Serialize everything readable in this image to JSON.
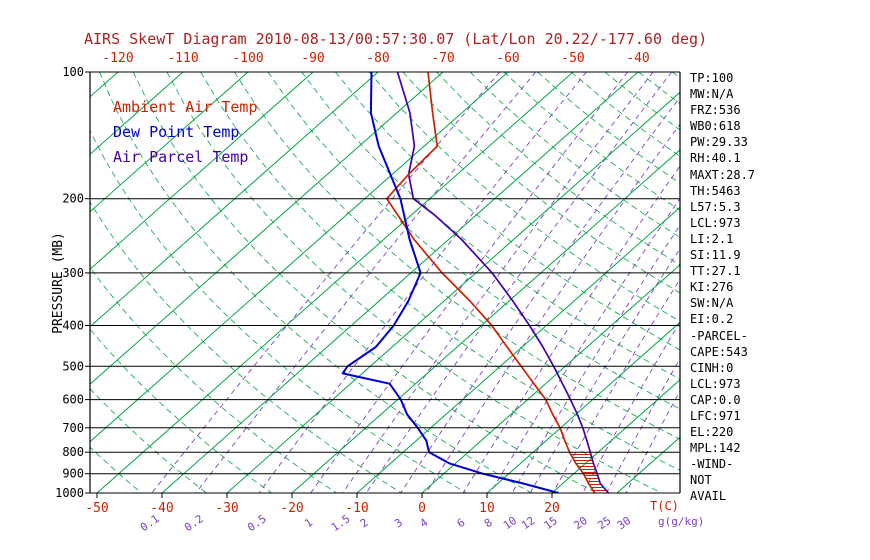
{
  "title": "AIRS SkewT Diagram 2010-08-13/00:57:30.07 (Lat/Lon 20.22/-177.60 deg)",
  "colors": {
    "title": "#aa2222",
    "red": "#cc2200",
    "green": "#00a544",
    "blue": "#0000cc",
    "violet": "#7d3fc4",
    "parcel": "#4400aa",
    "black": "#000000"
  },
  "legend": [
    {
      "label": "Ambient Air Temp",
      "color": "#cc2200"
    },
    {
      "label": "Dew Point Temp",
      "color": "#0000cc"
    },
    {
      "label": "Air Parcel Temp",
      "color": "#4400aa"
    }
  ],
  "stats_panel": {
    "lines": [
      "TP:100",
      "MW:N/A",
      "FRZ:536",
      "WB0:618",
      "PW:29.33",
      "RH:40.1",
      "MAXT:28.7",
      "TH:5463",
      "L57:5.3",
      "LCL:973",
      "LI:2.1",
      "SI:11.9",
      "TT:27.1",
      "KI:276",
      "SW:N/A",
      "EI:0.2",
      "-PARCEL-",
      "CAPE:543",
      "CINH:0",
      "LCL:973",
      "CAP:0.0",
      "LFC:971",
      "EL:220",
      "MPL:142",
      "-WIND-",
      "NOT",
      "AVAIL"
    ]
  },
  "axes": {
    "pressure_label": "PRESSURE (MB)",
    "pressure_ticks": [
      100,
      200,
      300,
      400,
      500,
      600,
      700,
      800,
      900,
      1000
    ],
    "top_temp_ticks": [
      -120,
      -110,
      -100,
      -90,
      -80,
      -70,
      -60,
      -50,
      -40
    ],
    "bottom_temp_ticks": [
      -50,
      -40,
      -30,
      -20,
      -10,
      0,
      10,
      20
    ],
    "mixing_ratios": [
      0.1,
      0.2,
      0.5,
      1,
      1.5,
      2,
      3,
      4,
      6,
      8,
      10,
      12,
      15,
      20,
      25,
      30
    ],
    "temp_unit": "T(C)",
    "mixing_unit": "g(g/kg)"
  },
  "chart_data": {
    "type": "line",
    "subtype": "skew-t-log-p",
    "title": "AIRS SkewT Diagram 2010-08-13/00:57:30.07 (Lat/Lon 20.22/-177.60 deg)",
    "ylabel": "PRESSURE (MB)",
    "xlabel": "T(C)",
    "pressure_scale": "log",
    "pressure_range": [
      100,
      1000
    ],
    "temp_range_bottom_axis": [
      -50,
      20
    ],
    "temp_range_top_axis": [
      -120,
      -40
    ],
    "isotherms": {
      "min": -160,
      "max": 40,
      "step": 10
    },
    "dry_adiabats_K": {
      "min": 230,
      "max": 460,
      "step": 10
    },
    "mixing_ratio_lines_g_kg": [
      0.1,
      0.2,
      0.5,
      1,
      1.5,
      2,
      3,
      4,
      6,
      8,
      10,
      12,
      15,
      20,
      25,
      30
    ],
    "grid": "pressure lines every 100 mb, black",
    "legend_position": "top-left inside plot",
    "series": [
      {
        "name": "Ambient Air Temp",
        "key": "ambient-air-temp-curve",
        "color": "#cc2200",
        "units": [
          "mb",
          "degC"
        ],
        "points": [
          [
            1000,
            26.6
          ],
          [
            950,
            24.0
          ],
          [
            900,
            21.5
          ],
          [
            850,
            18.5
          ],
          [
            800,
            15.6
          ],
          [
            750,
            12.8
          ],
          [
            700,
            9.9
          ],
          [
            650,
            6.4
          ],
          [
            600,
            2.8
          ],
          [
            550,
            -1.8
          ],
          [
            500,
            -6.8
          ],
          [
            450,
            -12.3
          ],
          [
            400,
            -18.4
          ],
          [
            350,
            -26.0
          ],
          [
            300,
            -35.2
          ],
          [
            250,
            -45.3
          ],
          [
            200,
            -56.6
          ],
          [
            175,
            -57.5
          ],
          [
            150,
            -58.0
          ],
          [
            125,
            -64.5
          ],
          [
            100,
            -72.3
          ]
        ]
      },
      {
        "name": "Dew Point Temp",
        "key": "dew-point-temp-curve",
        "color": "#0000cc",
        "units": [
          "mb",
          "degC"
        ],
        "points": [
          [
            1000,
            21.0
          ],
          [
            950,
            14.0
          ],
          [
            900,
            6.0
          ],
          [
            850,
            -1.0
          ],
          [
            800,
            -6.0
          ],
          [
            750,
            -8.5
          ],
          [
            700,
            -12.0
          ],
          [
            650,
            -16.0
          ],
          [
            600,
            -19.5
          ],
          [
            550,
            -24.0
          ],
          [
            520,
            -33.0
          ],
          [
            500,
            -33.5
          ],
          [
            450,
            -32.5
          ],
          [
            400,
            -33.5
          ],
          [
            350,
            -35.5
          ],
          [
            300,
            -38.5
          ],
          [
            250,
            -46.0
          ],
          [
            200,
            -54.5
          ],
          [
            150,
            -67.0
          ],
          [
            125,
            -74.0
          ],
          [
            100,
            -81.0
          ]
        ]
      },
      {
        "name": "Air Parcel Temp",
        "key": "air-parcel-temp-curve",
        "color": "#4400aa",
        "units": [
          "mb",
          "degC"
        ],
        "points": [
          [
            1000,
            28.7
          ],
          [
            950,
            25.8
          ],
          [
            900,
            23.6
          ],
          [
            850,
            21.2
          ],
          [
            800,
            18.8
          ],
          [
            750,
            16.2
          ],
          [
            700,
            13.4
          ],
          [
            650,
            10.2
          ],
          [
            600,
            6.6
          ],
          [
            550,
            2.6
          ],
          [
            500,
            -1.8
          ],
          [
            450,
            -6.8
          ],
          [
            400,
            -12.6
          ],
          [
            350,
            -19.4
          ],
          [
            300,
            -27.5
          ],
          [
            250,
            -38.0
          ],
          [
            220,
            -46.0
          ],
          [
            200,
            -52.5
          ],
          [
            175,
            -57.5
          ],
          [
            150,
            -61.5
          ],
          [
            125,
            -68.0
          ],
          [
            100,
            -77.0
          ]
        ]
      }
    ],
    "hatched_region": {
      "between": [
        "Ambient Air Temp",
        "Air Parcel Temp"
      ],
      "pressure_range": [
        800,
        1000
      ],
      "style": "red horizontal hatch"
    }
  }
}
